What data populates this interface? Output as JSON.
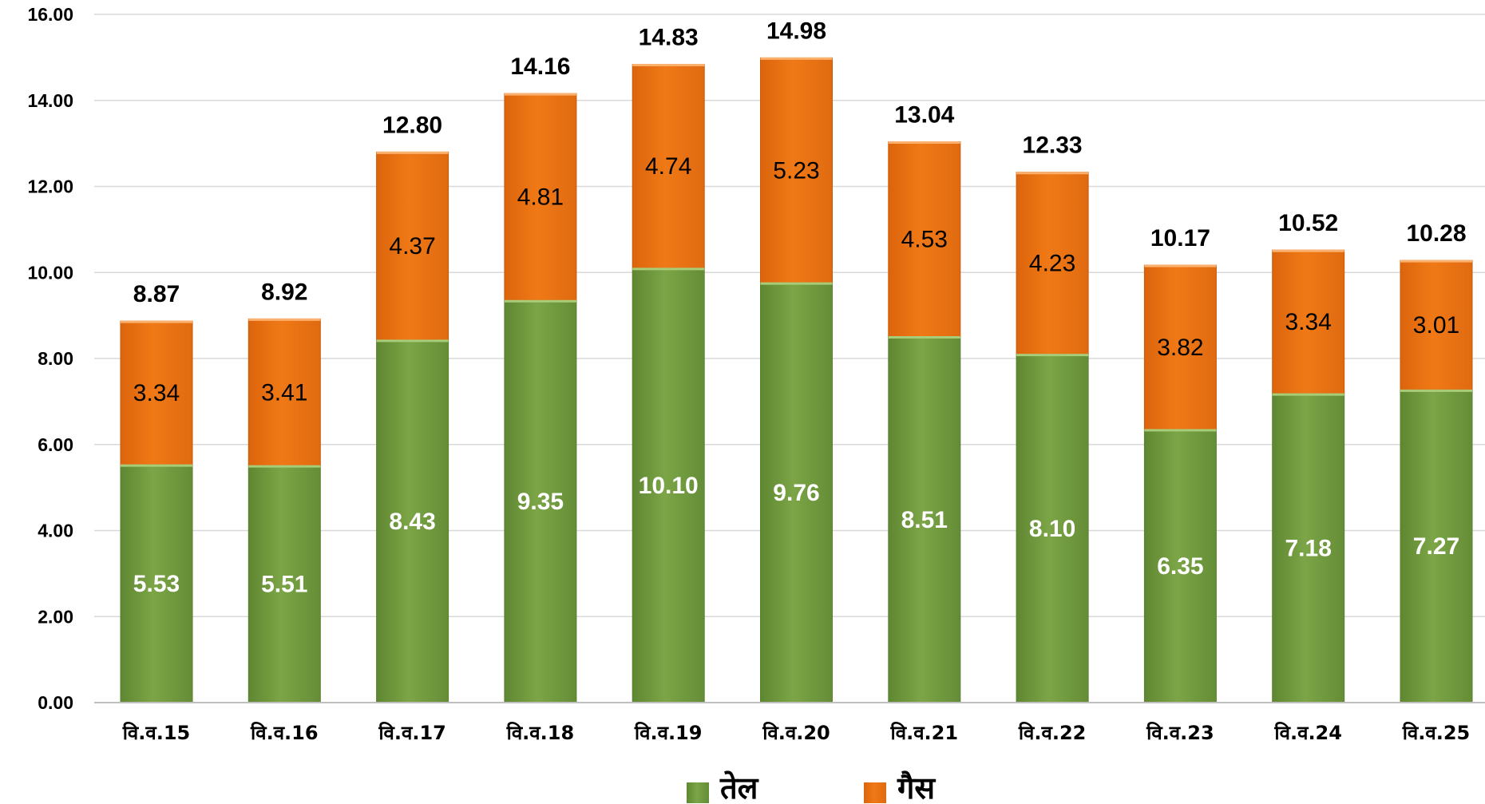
{
  "chart_data": {
    "type": "bar",
    "stacked": true,
    "categories": [
      "वि.व.15",
      "वि.व.16",
      "वि.व.17",
      "वि.व.18",
      "वि.व.19",
      "वि.व.20",
      "वि.व.21",
      "वि.व.22",
      "वि.व.23",
      "वि.व.24",
      "वि.व.25"
    ],
    "series": [
      {
        "name": "तेल",
        "color": "#77a043",
        "values": [
          5.53,
          5.51,
          8.43,
          9.35,
          10.1,
          9.76,
          8.51,
          8.1,
          6.35,
          7.18,
          7.27
        ]
      },
      {
        "name": "गैस",
        "color": "#ee7414",
        "values": [
          3.34,
          3.41,
          4.37,
          4.81,
          4.74,
          5.23,
          4.53,
          4.23,
          3.82,
          3.34,
          3.01
        ]
      }
    ],
    "totals": [
      "8.87",
      "8.92",
      "12.80",
      "14.16",
      "14.83",
      "14.98",
      "13.04",
      "12.33",
      "10.17",
      "10.52",
      "10.28"
    ],
    "oil_labels": [
      "5.53",
      "5.51",
      "8.43",
      "9.35",
      "10.10",
      "9.76",
      "8.51",
      "8.10",
      "6.35",
      "7.18",
      "7.27"
    ],
    "gas_labels": [
      "3.34",
      "3.41",
      "4.37",
      "4.81",
      "4.74",
      "5.23",
      "4.53",
      "4.23",
      "3.82",
      "3.34",
      "3.01"
    ],
    "ylim": [
      0,
      16
    ],
    "yticks": [
      "0.00",
      "2.00",
      "4.00",
      "6.00",
      "8.00",
      "10.00",
      "12.00",
      "14.00",
      "16.00"
    ],
    "grid": true,
    "legend_position": "bottom-center",
    "title": "",
    "xlabel": "",
    "ylabel": ""
  }
}
